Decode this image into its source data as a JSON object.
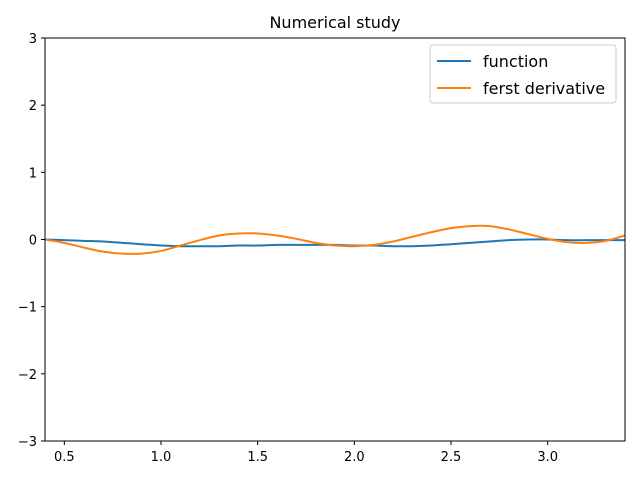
{
  "chart_data": {
    "type": "line",
    "title": "Numerical study",
    "xlabel": "",
    "ylabel": "",
    "xlim": [
      0.4,
      3.4
    ],
    "ylim": [
      -3,
      3
    ],
    "x_ticks": [
      0.5,
      1.0,
      1.5,
      2.0,
      2.5,
      3.0
    ],
    "x_tick_labels": [
      "0.5",
      "1.0",
      "1.5",
      "2.0",
      "2.5",
      "3.0"
    ],
    "y_ticks": [
      -3,
      -2,
      -1,
      0,
      1,
      2,
      3
    ],
    "y_tick_labels": [
      "−3",
      "−2",
      "−1",
      "0",
      "1",
      "2",
      "3"
    ],
    "grid": false,
    "legend_position": "top-right",
    "x": [
      0.4,
      0.5,
      0.6,
      0.7,
      0.8,
      0.9,
      1.0,
      1.1,
      1.2,
      1.3,
      1.4,
      1.5,
      1.6,
      1.7,
      1.8,
      1.9,
      2.0,
      2.1,
      2.2,
      2.3,
      2.4,
      2.5,
      2.6,
      2.7,
      2.8,
      2.9,
      3.0,
      3.1,
      3.2,
      3.3,
      3.4
    ],
    "series": [
      {
        "name": "function",
        "color": "#1f77b4",
        "values": [
          0.0,
          -0.01,
          -0.02,
          -0.03,
          -0.05,
          -0.07,
          -0.09,
          -0.1,
          -0.1,
          -0.1,
          -0.09,
          -0.09,
          -0.08,
          -0.08,
          -0.08,
          -0.08,
          -0.09,
          -0.09,
          -0.1,
          -0.1,
          -0.09,
          -0.07,
          -0.05,
          -0.03,
          -0.01,
          0.0,
          0.0,
          -0.01,
          -0.01,
          -0.01,
          -0.01
        ]
      },
      {
        "name": "ferst derivative",
        "color": "#ff7f0e",
        "values": [
          0.0,
          -0.05,
          -0.12,
          -0.18,
          -0.21,
          -0.21,
          -0.17,
          -0.09,
          -0.01,
          0.06,
          0.09,
          0.09,
          0.06,
          0.01,
          -0.05,
          -0.09,
          -0.1,
          -0.08,
          -0.03,
          0.04,
          0.11,
          0.17,
          0.2,
          0.2,
          0.15,
          0.08,
          0.01,
          -0.04,
          -0.05,
          -0.02,
          0.06
        ]
      }
    ]
  }
}
